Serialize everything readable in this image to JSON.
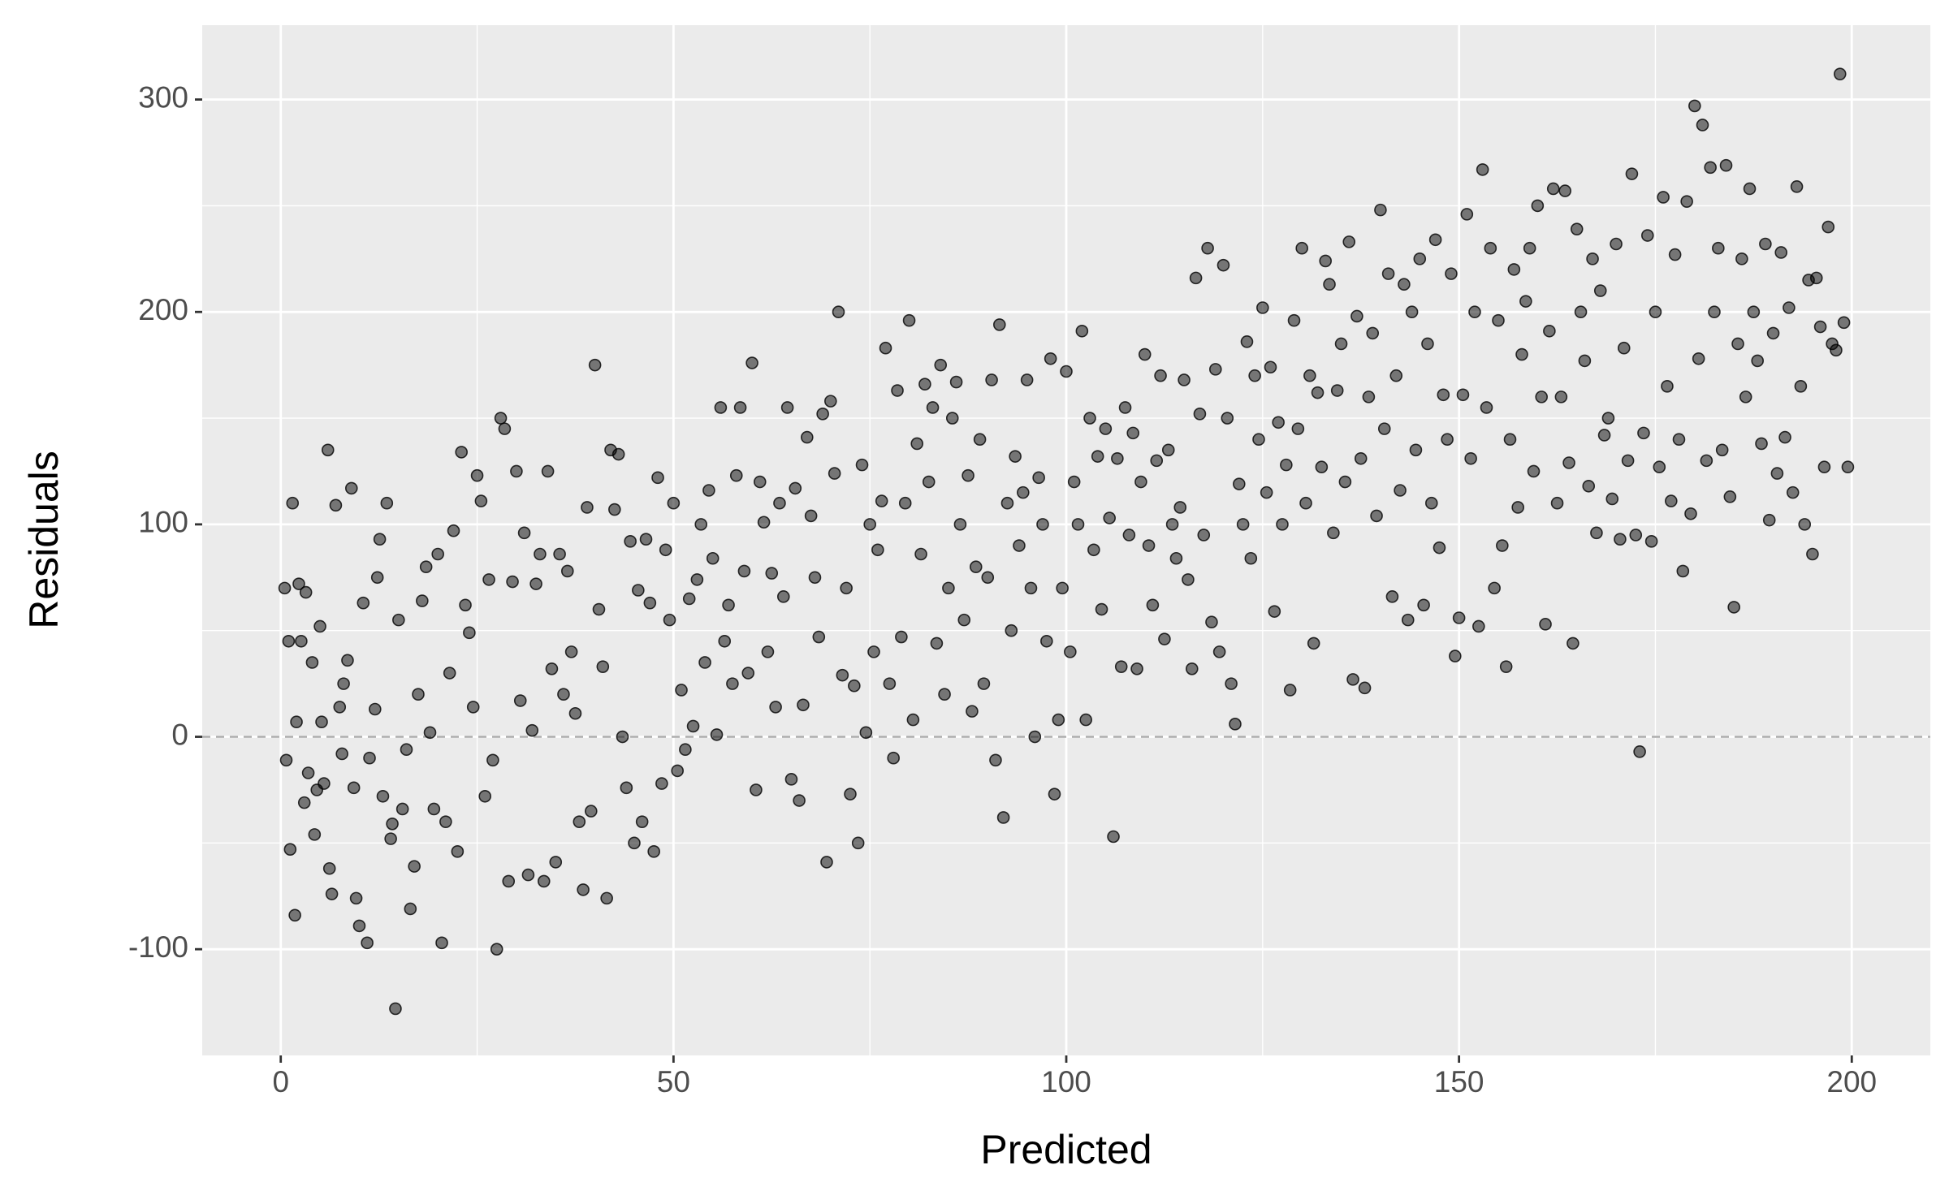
{
  "chart_data": {
    "type": "scatter",
    "x_label": "Predicted",
    "y_label": "Residuals",
    "xlim": [
      -10,
      210
    ],
    "ylim": [
      -150,
      335
    ],
    "xticks": [
      0,
      50,
      100,
      150,
      200
    ],
    "yticks": [
      -100,
      0,
      100,
      200,
      300
    ],
    "x_minor_grid": [
      25,
      75,
      125,
      175
    ],
    "y_minor_grid": [
      -50,
      50,
      150,
      250
    ],
    "grid": true,
    "panel_color": "#EBEBEB",
    "color": "#000000",
    "opacity": 0.5,
    "hline": 0,
    "x": [
      0.5,
      0.7,
      1,
      1.2,
      1.5,
      1.8,
      2,
      2.3,
      2.6,
      3,
      3.2,
      3.5,
      4,
      4.3,
      4.6,
      5,
      5.2,
      5.5,
      6,
      6.2,
      6.5,
      7,
      7.5,
      7.8,
      8,
      8.5,
      9,
      9.3,
      9.6,
      10,
      10.5,
      11,
      11.3,
      12,
      12.3,
      12.6,
      13,
      13.5,
      14,
      14.2,
      14.6,
      15,
      15.5,
      16,
      16.5,
      17,
      17.5,
      18,
      18.5,
      19,
      19.5,
      20,
      20.5,
      21,
      21.5,
      22,
      22.5,
      23,
      23.5,
      24,
      24.5,
      25,
      25.5,
      26,
      26.5,
      27,
      27.5,
      28,
      28.5,
      29,
      29.5,
      30,
      30.5,
      31,
      31.5,
      32,
      32.5,
      33,
      33.5,
      34,
      34.5,
      35,
      35.5,
      36,
      36.5,
      37,
      37.5,
      38,
      38.5,
      39,
      39.5,
      40,
      40.5,
      41,
      41.5,
      42,
      42.5,
      43,
      43.5,
      44,
      44.5,
      45,
      45.5,
      46,
      46.5,
      47,
      47.5,
      48,
      48.5,
      49,
      49.5,
      50,
      50.5,
      51,
      51.5,
      52,
      52.5,
      53,
      53.5,
      54,
      54.5,
      55,
      55.5,
      56,
      56.5,
      57,
      57.5,
      58,
      58.5,
      59,
      59.5,
      60,
      60.5,
      61,
      61.5,
      62,
      62.5,
      63,
      63.5,
      64,
      64.5,
      65,
      65.5,
      66,
      66.5,
      67,
      67.5,
      68,
      68.5,
      69,
      69.5,
      70,
      70.5,
      71,
      71.5,
      72,
      72.5,
      73,
      73.5,
      74,
      74.5,
      75,
      75.5,
      76,
      76.5,
      77,
      77.5,
      78,
      78.5,
      79,
      79.5,
      80,
      80.5,
      81,
      81.5,
      82,
      82.5,
      83,
      83.5,
      84,
      84.5,
      85,
      85.5,
      86,
      86.5,
      87,
      87.5,
      88,
      88.5,
      89,
      89.5,
      90,
      90.5,
      91,
      91.5,
      92,
      92.5,
      93,
      93.5,
      94,
      94.5,
      95,
      95.5,
      96,
      96.5,
      97,
      97.5,
      98,
      98.5,
      99,
      99.5,
      100,
      100.5,
      101,
      101.5,
      102,
      102.5,
      103,
      103.5,
      104,
      104.5,
      105,
      105.5,
      106,
      106.5,
      107,
      107.5,
      108,
      108.5,
      109,
      109.5,
      110,
      110.5,
      111,
      111.5,
      112,
      112.5,
      113,
      113.5,
      114,
      114.5,
      115,
      115.5,
      116,
      116.5,
      117,
      117.5,
      118,
      118.5,
      119,
      119.5,
      120,
      120.5,
      121,
      121.5,
      122,
      122.5,
      123,
      123.5,
      124,
      124.5,
      125,
      125.5,
      126,
      126.5,
      127,
      127.5,
      128,
      128.5,
      129,
      129.5,
      130,
      130.5,
      131,
      131.5,
      132,
      132.5,
      133,
      133.5,
      134,
      134.5,
      135,
      135.5,
      136,
      136.5,
      137,
      137.5,
      138,
      138.5,
      139,
      139.5,
      140,
      140.5,
      141,
      141.5,
      142,
      142.5,
      143,
      143.5,
      144,
      144.5,
      145,
      145.5,
      146,
      146.5,
      147,
      147.5,
      148,
      148.5,
      149,
      149.5,
      150,
      150.5,
      151,
      151.5,
      152,
      152.5,
      153,
      153.5,
      154,
      154.5,
      155,
      155.5,
      156,
      156.5,
      157,
      157.5,
      158,
      158.5,
      159,
      159.5,
      160,
      160.5,
      161,
      161.5,
      162,
      162.5,
      163,
      163.5,
      164,
      164.5,
      165,
      165.5,
      166,
      166.5,
      167,
      167.5,
      168,
      168.5,
      169,
      169.5,
      170,
      170.5,
      171,
      171.5,
      172,
      172.5,
      173,
      173.5,
      174,
      174.5,
      175,
      175.5,
      176,
      176.5,
      177,
      177.5,
      178,
      178.5,
      179,
      179.5,
      180,
      180.5,
      181,
      181.5,
      182,
      182.5,
      183,
      183.5,
      184,
      184.5,
      185,
      185.5,
      186,
      186.5,
      187,
      187.5,
      188,
      188.5,
      189,
      189.5,
      190,
      190.5,
      191,
      191.5,
      192,
      192.5,
      193,
      193.5,
      194,
      194.5,
      195,
      195.5,
      196,
      196.5,
      197,
      197.5,
      198,
      198.5,
      199,
      199.5
    ],
    "values": [
      70,
      -11,
      45,
      -53,
      110,
      -84,
      7,
      72,
      45,
      -31,
      68,
      -17,
      35,
      -46,
      -25,
      52,
      7,
      -22,
      135,
      -62,
      -74,
      109,
      14,
      -8,
      25,
      36,
      117,
      -24,
      -76,
      -89,
      63,
      -97,
      -10,
      13,
      75,
      93,
      -28,
      110,
      -48,
      -41,
      -128,
      55,
      -34,
      -6,
      -81,
      -61,
      20,
      64,
      80,
      2,
      -34,
      86,
      -97,
      -40,
      30,
      97,
      -54,
      134,
      62,
      49,
      14,
      123,
      111,
      -28,
      74,
      -11,
      -100,
      150,
      145,
      -68,
      73,
      125,
      17,
      96,
      -65,
      3,
      72,
      86,
      -68,
      125,
      32,
      -59,
      86,
      20,
      78,
      40,
      11,
      -40,
      -72,
      108,
      -35,
      175,
      60,
      33,
      -76,
      135,
      107,
      133,
      0,
      -24,
      92,
      -50,
      69,
      -40,
      93,
      63,
      -54,
      122,
      -22,
      88,
      55,
      110,
      -16,
      22,
      -6,
      65,
      5,
      74,
      100,
      35,
      116,
      84,
      1,
      155,
      45,
      62,
      25,
      123,
      155,
      78,
      30,
      176,
      -25,
      120,
      101,
      40,
      77,
      14,
      110,
      66,
      155,
      -20,
      117,
      -30,
      15,
      141,
      104,
      75,
      47,
      152,
      -59,
      158,
      124,
      200,
      29,
      70,
      -27,
      24,
      -50,
      128,
      2,
      100,
      40,
      88,
      111,
      183,
      25,
      -10,
      163,
      47,
      110,
      196,
      8,
      138,
      86,
      166,
      120,
      155,
      44,
      175,
      20,
      70,
      150,
      167,
      100,
      55,
      123,
      12,
      80,
      140,
      25,
      75,
      168,
      -11,
      194,
      -38,
      110,
      50,
      132,
      90,
      115,
      168,
      70,
      0,
      122,
      100,
      45,
      178,
      -27,
      8,
      70,
      172,
      40,
      120,
      100,
      191,
      8,
      150,
      88,
      132,
      60,
      145,
      103,
      -47,
      131,
      33,
      155,
      95,
      143,
      32,
      120,
      180,
      90,
      62,
      130,
      170,
      46,
      135,
      100,
      84,
      108,
      168,
      74,
      32,
      216,
      152,
      95,
      230,
      54,
      173,
      40,
      222,
      150,
      25,
      6,
      119,
      100,
      186,
      84,
      170,
      140,
      202,
      115,
      174,
      59,
      148,
      100,
      128,
      22,
      196,
      145,
      230,
      110,
      170,
      44,
      162,
      127,
      224,
      213,
      96,
      163,
      185,
      120,
      233,
      27,
      198,
      131,
      23,
      160,
      190,
      104,
      248,
      145,
      218,
      66,
      170,
      116,
      213,
      55,
      200,
      135,
      225,
      62,
      185,
      110,
      234,
      89,
      161,
      140,
      218,
      38,
      56,
      161,
      246,
      131,
      200,
      52,
      267,
      155,
      230,
      70,
      196,
      90,
      33,
      140,
      220,
      108,
      180,
      205,
      230,
      125,
      250,
      160,
      53,
      191,
      258,
      110,
      160,
      257,
      129,
      44,
      239,
      200,
      177,
      118,
      225,
      96,
      210,
      142,
      150,
      112,
      232,
      93,
      183,
      130,
      265,
      95,
      -7,
      143,
      236,
      92,
      200,
      127,
      254,
      165,
      111,
      227,
      140,
      78,
      252,
      105,
      297,
      178,
      288,
      130,
      268,
      200,
      230,
      135,
      269,
      113,
      61,
      185,
      225,
      160,
      258,
      200,
      177,
      138,
      232,
      102,
      190,
      124,
      228,
      141,
      202,
      115,
      259,
      165,
      100,
      215,
      86,
      216,
      193,
      127,
      240,
      185,
      182,
      312,
      195,
      127
    ]
  }
}
